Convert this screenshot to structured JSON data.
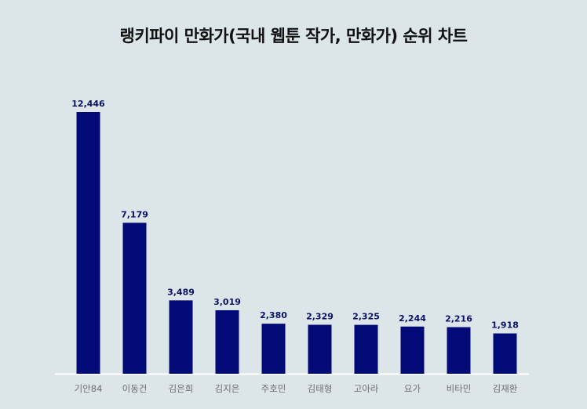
{
  "chart_data": {
    "type": "bar",
    "title": "랭키파이 만화가(국내 웹툰 작가, 만화가) 순위 차트",
    "categories": [
      "기안84",
      "이동건",
      "김은희",
      "김지은",
      "주호민",
      "김태형",
      "고아라",
      "요가",
      "비타민",
      "김재환"
    ],
    "values": [
      12446,
      7179,
      3489,
      3019,
      2380,
      2329,
      2325,
      2244,
      2216,
      1918
    ],
    "value_labels": [
      "12,446",
      "7,179",
      "3,489",
      "3,019",
      "2,380",
      "2,329",
      "2,325",
      "2,244",
      "2,216",
      "1,918"
    ],
    "xlabel": "",
    "ylabel": "",
    "ylim": [
      0,
      12446
    ],
    "grid": false,
    "legend": "none",
    "bar_color": "#020a78",
    "background_color": "#dce6e9"
  }
}
